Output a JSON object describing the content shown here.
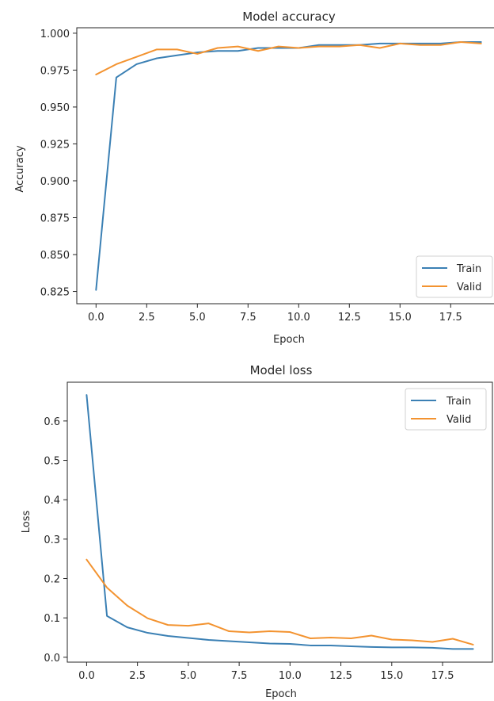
{
  "colors": {
    "train": "#3b80b4",
    "valid": "#f39330",
    "axis": "#262626",
    "legend_border": "#d0d0d0"
  },
  "chart_data": [
    {
      "type": "line",
      "title": "Model accuracy",
      "xlabel": "Epoch",
      "ylabel": "Accuracy",
      "xlim": [
        -0.95,
        19.95
      ],
      "ylim": [
        0.8167,
        1.0037
      ],
      "grid": false,
      "legend_position": "lower-right",
      "x_ticks": [
        0.0,
        2.5,
        5.0,
        7.5,
        10.0,
        12.5,
        15.0,
        17.5
      ],
      "x_tick_labels": [
        "0.0",
        "2.5",
        "5.0",
        "7.5",
        "10.0",
        "12.5",
        "15.0",
        "17.5"
      ],
      "y_ticks": [
        0.825,
        0.85,
        0.875,
        0.9,
        0.925,
        0.95,
        0.975,
        1.0
      ],
      "y_tick_labels": [
        "0.825",
        "0.850",
        "0.875",
        "0.900",
        "0.925",
        "0.950",
        "0.975",
        "1.000"
      ],
      "x": [
        0,
        1,
        2,
        3,
        4,
        5,
        6,
        7,
        8,
        9,
        10,
        11,
        12,
        13,
        14,
        15,
        16,
        17,
        18,
        19
      ],
      "series": [
        {
          "name": "Train",
          "color": "#3b80b4",
          "values": [
            0.826,
            0.97,
            0.979,
            0.983,
            0.985,
            0.987,
            0.988,
            0.988,
            0.99,
            0.99,
            0.99,
            0.992,
            0.992,
            0.992,
            0.993,
            0.993,
            0.993,
            0.993,
            0.994,
            0.994
          ]
        },
        {
          "name": "Valid",
          "color": "#f39330",
          "values": [
            0.972,
            0.979,
            0.984,
            0.989,
            0.989,
            0.986,
            0.99,
            0.991,
            0.988,
            0.991,
            0.99,
            0.991,
            0.991,
            0.992,
            0.99,
            0.993,
            0.992,
            0.992,
            0.994,
            0.993
          ]
        }
      ]
    },
    {
      "type": "line",
      "title": "Model loss",
      "xlabel": "Epoch",
      "ylabel": "Loss",
      "xlim": [
        -0.95,
        19.95
      ],
      "ylim": [
        -0.0124,
        0.6984
      ],
      "grid": false,
      "legend_position": "upper-right",
      "x_ticks": [
        0.0,
        2.5,
        5.0,
        7.5,
        10.0,
        12.5,
        15.0,
        17.5
      ],
      "x_tick_labels": [
        "0.0",
        "2.5",
        "5.0",
        "7.5",
        "10.0",
        "12.5",
        "15.0",
        "17.5"
      ],
      "y_ticks": [
        0.0,
        0.1,
        0.2,
        0.3,
        0.4,
        0.5,
        0.6
      ],
      "y_tick_labels": [
        "0.0",
        "0.1",
        "0.2",
        "0.3",
        "0.4",
        "0.5",
        "0.6"
      ],
      "x": [
        0,
        1,
        2,
        3,
        4,
        5,
        6,
        7,
        8,
        9,
        10,
        11,
        12,
        13,
        14,
        15,
        16,
        17,
        18,
        19
      ],
      "series": [
        {
          "name": "Train",
          "color": "#3b80b4",
          "values": [
            0.666,
            0.105,
            0.076,
            0.062,
            0.054,
            0.049,
            0.044,
            0.041,
            0.038,
            0.035,
            0.034,
            0.03,
            0.03,
            0.028,
            0.026,
            0.025,
            0.025,
            0.024,
            0.021,
            0.021
          ]
        },
        {
          "name": "Valid",
          "color": "#f39330",
          "values": [
            0.248,
            0.177,
            0.131,
            0.099,
            0.082,
            0.08,
            0.086,
            0.066,
            0.063,
            0.066,
            0.064,
            0.048,
            0.05,
            0.048,
            0.055,
            0.045,
            0.043,
            0.039,
            0.047,
            0.032
          ]
        }
      ]
    }
  ]
}
